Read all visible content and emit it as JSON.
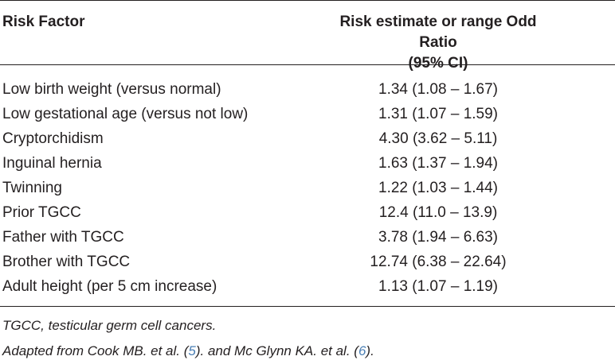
{
  "table": {
    "headers": {
      "risk_factor": "Risk Factor",
      "estimate_line1": "Risk estimate or range Odd Ratio",
      "estimate_line2": "(95% CI)"
    },
    "rows": [
      {
        "factor": "Low birth weight (versus normal)",
        "estimate": "1.34 (1.08 – 1.67)"
      },
      {
        "factor": "Low gestational age (versus not low)",
        "estimate": "1.31 (1.07 – 1.59)"
      },
      {
        "factor": "Cryptorchidism",
        "estimate": "4.30 (3.62 – 5.11)"
      },
      {
        "factor": "Inguinal hernia",
        "estimate": "1.63 (1.37 – 1.94)"
      },
      {
        "factor": "Twinning",
        "estimate": "1.22 (1.03 – 1.44)"
      },
      {
        "factor": "Prior TGCC",
        "estimate": "12.4 (11.0 – 13.9)"
      },
      {
        "factor": "Father with TGCC",
        "estimate": "3.78 (1.94 – 6.63)"
      },
      {
        "factor": "Brother with TGCC",
        "estimate": "12.74 (6.38 – 22.64)"
      },
      {
        "factor": "Adult height (per 5 cm increase)",
        "estimate": "1.13 (1.07 – 1.19)"
      }
    ]
  },
  "footnotes": {
    "abbreviation": "TGCC, testicular germ cell cancers.",
    "source_prefix": "Adapted from Cook MB. et al. (",
    "ref1": "5",
    "source_middle": "). and Mc Glynn KA. et al. (",
    "ref2": "6",
    "source_suffix": ")."
  },
  "colors": {
    "text": "#231f20",
    "link": "#4a7fb5",
    "rule": "#231f20"
  }
}
